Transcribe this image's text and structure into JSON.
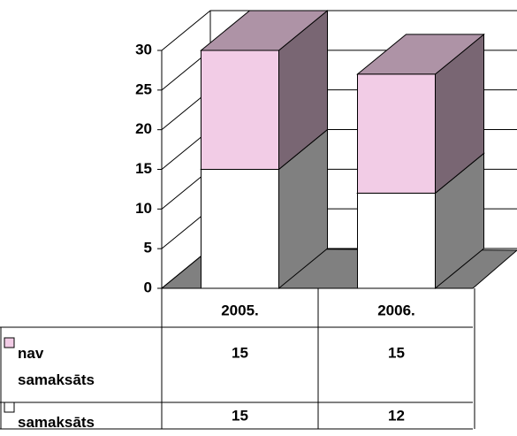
{
  "chart_data": {
    "type": "bar3d_stacked",
    "categories": [
      "2005.",
      "2006."
    ],
    "series": [
      {
        "name": "nav samaksāts",
        "color": "#f2cce6",
        "values": [
          15,
          15
        ]
      },
      {
        "name": "samaksāts",
        "color": "#ffffff",
        "values": [
          15,
          12
        ]
      }
    ],
    "ylim": [
      0,
      30
    ],
    "yticks": [
      0,
      5,
      10,
      15,
      20,
      25,
      30
    ],
    "grid": true,
    "data_table": true
  }
}
